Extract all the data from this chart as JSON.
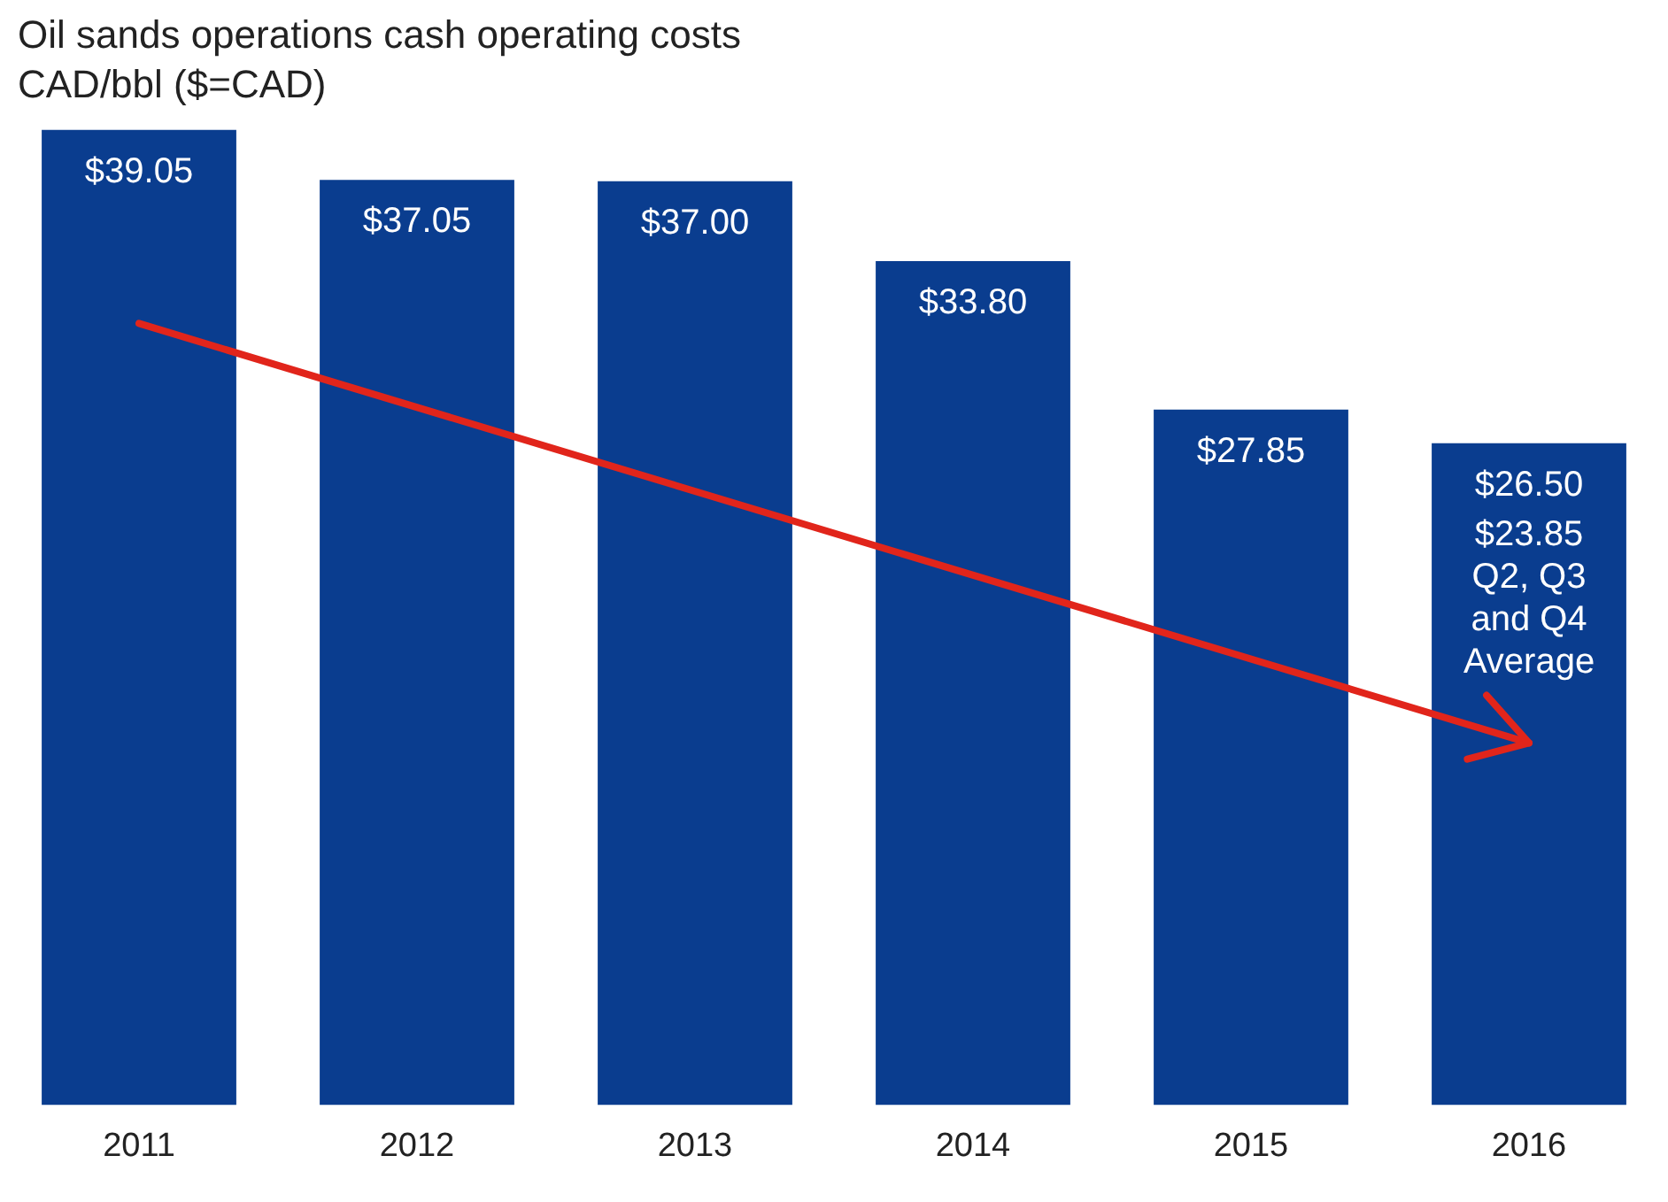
{
  "chart_data": {
    "type": "bar",
    "title": "Oil sands operations cash operating costs",
    "subtitle": "CAD/bbl ($=CAD)",
    "categories": [
      "2011",
      "2012",
      "2013",
      "2014",
      "2015",
      "2016"
    ],
    "series": [
      {
        "color": "#0a3d8f",
        "values": [
          39.05,
          37.05,
          37.0,
          33.8,
          27.85,
          26.5
        ],
        "value_labels": [
          "$39.05",
          "$37.05",
          "$37.00",
          "$33.80",
          "$27.85",
          "$26.50"
        ]
      },
      {
        "type": "line",
        "color": "#e1251b",
        "values": [
          31.3,
          null,
          null,
          null,
          null,
          14.5
        ],
        "marker": "none"
      }
    ],
    "tick_labels": "x",
    "grid": false,
    "legend": false,
    "annotations": [
      "$23.85 Q2, Q3 and Q4 Average"
    ]
  }
}
